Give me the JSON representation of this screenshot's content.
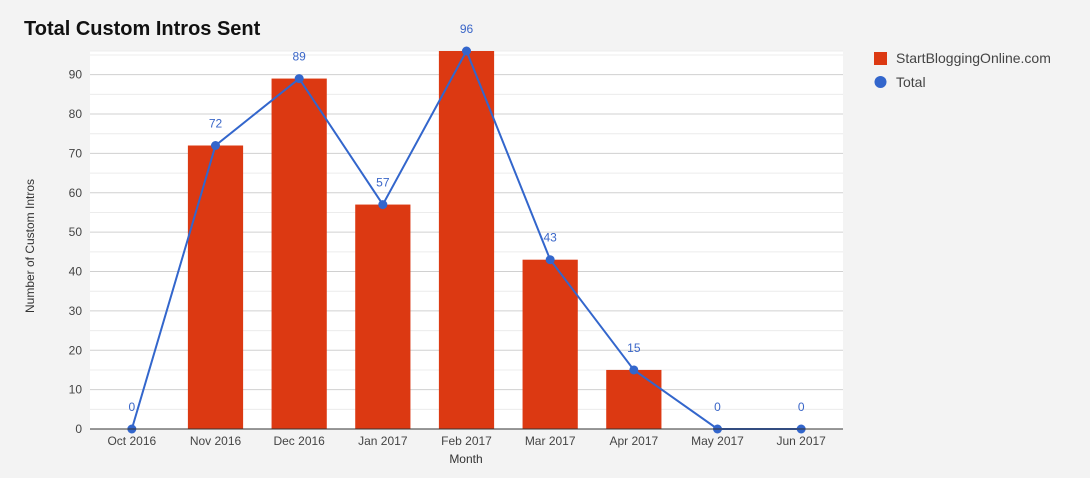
{
  "chart_data": {
    "type": "bar",
    "title": "Total Custom Intros Sent",
    "xlabel": "Month",
    "ylabel": "Number of Custom Intros",
    "categories": [
      "Oct 2016",
      "Nov 2016",
      "Dec 2016",
      "Jan 2017",
      "Feb 2017",
      "Mar 2017",
      "Apr 2017",
      "May 2017",
      "Jun 2017"
    ],
    "ylim": [
      0,
      96
    ],
    "y_ticks": [
      0,
      10,
      20,
      30,
      40,
      50,
      60,
      70,
      80,
      90
    ],
    "grid": true,
    "legend_position": "right",
    "series": [
      {
        "name": "StartBloggingOnline.com",
        "type": "bar",
        "color": "#dc3912",
        "values": [
          0,
          72,
          89,
          57,
          96,
          43,
          15,
          0,
          0
        ]
      },
      {
        "name": "Total",
        "type": "line",
        "color": "#3366cc",
        "values": [
          0,
          72,
          89,
          57,
          96,
          43,
          15,
          0,
          0
        ]
      }
    ],
    "data_labels": [
      "0",
      "72",
      "89",
      "57",
      "96",
      "43",
      "15",
      "0",
      "0"
    ]
  }
}
